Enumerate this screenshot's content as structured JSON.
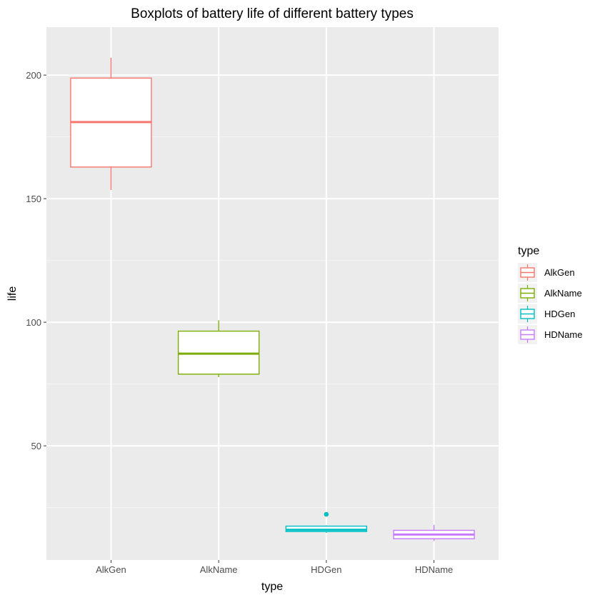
{
  "chart_data": {
    "type": "boxplot",
    "title": "Boxplots of battery life of different battery types",
    "xlabel": "type",
    "ylabel": "life",
    "categories": [
      "AlkGen",
      "AlkName",
      "HDGen",
      "HDName"
    ],
    "y_ticks": [
      50,
      100,
      150,
      200
    ],
    "ylim": [
      3.8,
      219.4
    ],
    "grid": true,
    "legend": {
      "title": "type",
      "placement": "right",
      "entries": [
        "AlkGen",
        "AlkName",
        "HDGen",
        "HDName"
      ]
    },
    "series": [
      {
        "name": "AlkGen",
        "color": "#F8766D",
        "whisker_low": 153.5,
        "q1": 162.8,
        "median": 181.0,
        "q3": 198.8,
        "whisker_high": 207.0,
        "outliers": []
      },
      {
        "name": "AlkName",
        "color": "#7CAE00",
        "whisker_low": 77.8,
        "q1": 79.0,
        "median": 87.3,
        "q3": 96.4,
        "whisker_high": 100.8,
        "outliers": []
      },
      {
        "name": "HDGen",
        "color": "#00BFC4",
        "whisker_low": 14.8,
        "q1": 15.3,
        "median": 16.0,
        "q3": 17.5,
        "whisker_high": 17.8,
        "outliers": [
          22.3
        ]
      },
      {
        "name": "HDName",
        "color": "#C77CFF",
        "whisker_low": 11.5,
        "q1": 12.4,
        "median": 14.1,
        "q3": 15.8,
        "whisker_high": 18.0,
        "outliers": []
      }
    ],
    "colors": {
      "panel_background": "#EBEBEB",
      "grid_major": "#FFFFFF",
      "grid_minor": "#F5F5F5",
      "box_fill": "#FFFFFF"
    }
  }
}
